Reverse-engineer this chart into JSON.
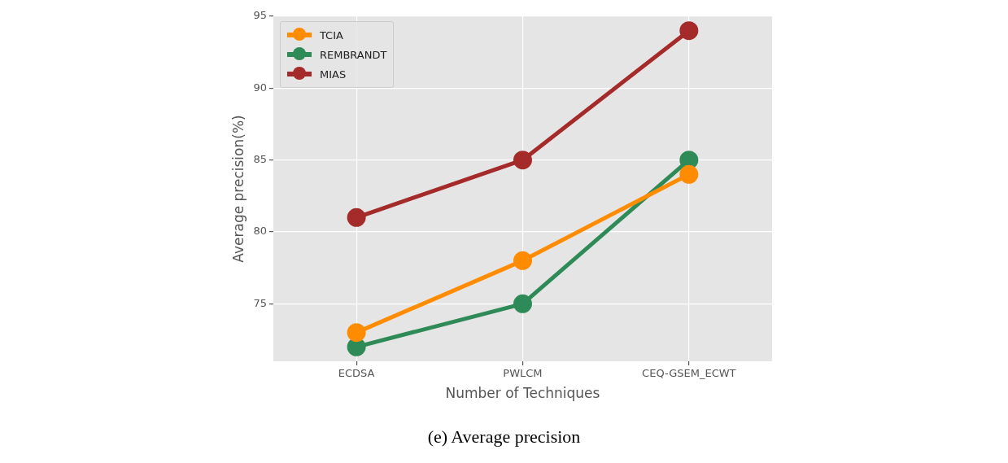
{
  "chart_data": {
    "type": "line",
    "xlabel": "Number of Techniques",
    "ylabel": "Average precision(%)",
    "categories": [
      "ECDSA",
      "PWLCM",
      "CEQ-GSEM_ECWT"
    ],
    "series": [
      {
        "name": "TCIA",
        "color": "#ff8c00",
        "values": [
          73,
          78,
          84
        ]
      },
      {
        "name": "REMBRANDT",
        "color": "#2e8b57",
        "values": [
          72,
          75,
          85
        ]
      },
      {
        "name": "MIAS",
        "color": "#a52a2a",
        "values": [
          81,
          85,
          94
        ]
      }
    ],
    "ylim": [
      71,
      95
    ],
    "yticks": [
      75,
      80,
      85,
      90,
      95
    ],
    "grid": true,
    "legend": "top left",
    "marker": "circle",
    "line_style": "solid",
    "annotations": [
      "(e) Average precision"
    ]
  }
}
